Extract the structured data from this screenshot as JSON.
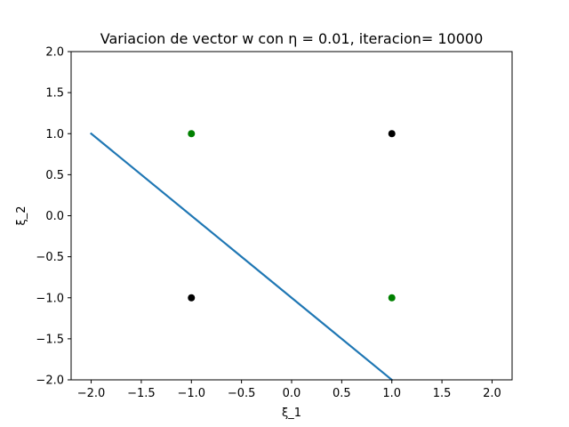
{
  "chart_data": {
    "type": "scatter",
    "title": "Variacion de vector w con η = 0.01, iteracion= 10000",
    "xlabel": "ξ_1",
    "ylabel": "ξ_2",
    "xlim": [
      -2.2,
      2.2
    ],
    "ylim": [
      -2.0,
      2.0
    ],
    "xticks": [
      -2.0,
      -1.5,
      -1.0,
      -0.5,
      0.0,
      0.5,
      1.0,
      1.5,
      2.0
    ],
    "xtick_labels": [
      "−2.0",
      "−1.5",
      "−1.0",
      "−0.5",
      "0.0",
      "0.5",
      "1.0",
      "1.5",
      "2.0"
    ],
    "yticks": [
      -2.0,
      -1.5,
      -1.0,
      -0.5,
      0.0,
      0.5,
      1.0,
      1.5,
      2.0
    ],
    "ytick_labels": [
      "−2.0",
      "−1.5",
      "−1.0",
      "−0.5",
      "0.0",
      "0.5",
      "1.0",
      "1.5",
      "2.0"
    ],
    "grid": false,
    "legend": "none",
    "series": [
      {
        "kind": "line",
        "color": "#1f77b4",
        "x": [
          -2.0,
          1.0
        ],
        "y": [
          1.0,
          -2.0
        ]
      },
      {
        "kind": "points",
        "color": "#008000",
        "x": [
          -1.0,
          1.0
        ],
        "y": [
          1.0,
          -1.0
        ]
      },
      {
        "kind": "points",
        "color": "#000000",
        "x": [
          1.0,
          -1.0
        ],
        "y": [
          1.0,
          -1.0
        ]
      }
    ]
  }
}
